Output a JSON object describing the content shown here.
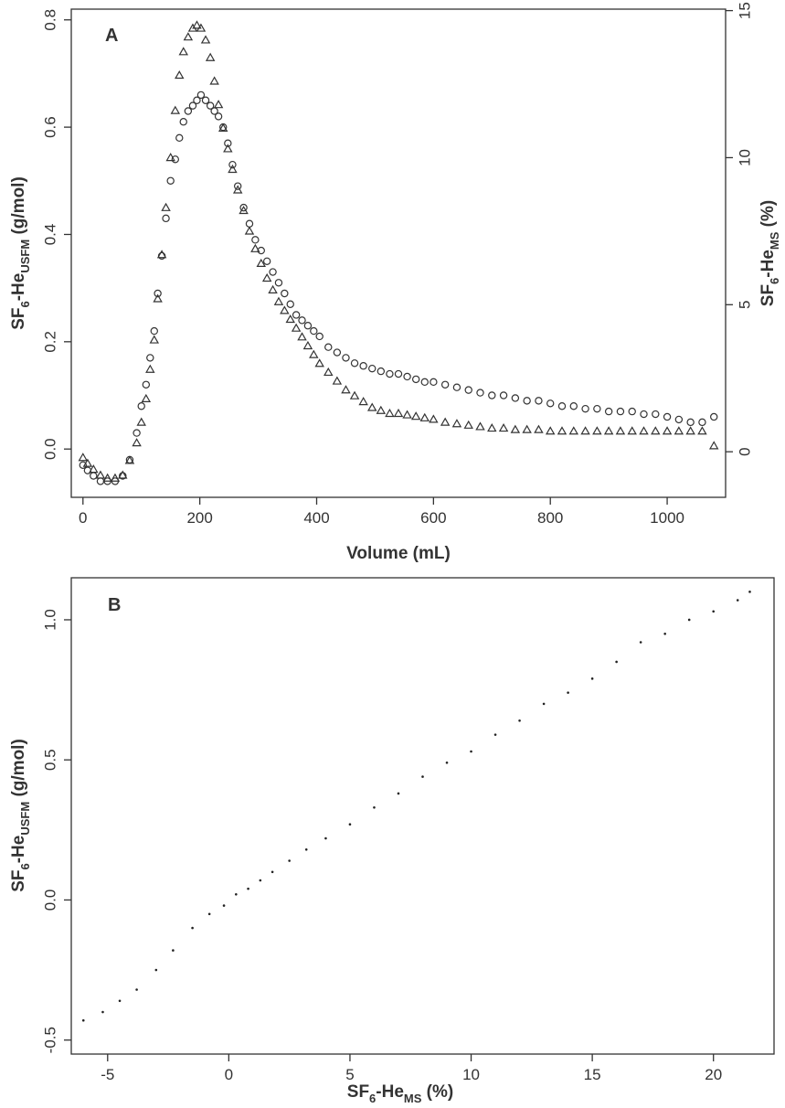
{
  "chart_data": [
    {
      "panel": "A",
      "type": "scatter",
      "xlabel": "Volume (mL)",
      "ylabel": {
        "base": "SF",
        "sub1": "6",
        "mid": "-He",
        "sub2": "USFM",
        "tail": " (g/mol)"
      },
      "ylabel_right": {
        "base": "SF",
        "sub1": "6",
        "mid": "-He",
        "sub2": "MS",
        "tail": " (%)"
      },
      "xlim": [
        -20,
        1100
      ],
      "ylim": [
        -0.09,
        0.82
      ],
      "ylim_right": [
        -1.55,
        15.05
      ],
      "xticks": [
        0,
        200,
        400,
        600,
        800,
        1000
      ],
      "yticks": [
        0.0,
        0.2,
        0.4,
        0.6,
        0.8
      ],
      "yticks_right": [
        0,
        5,
        10,
        15
      ],
      "ytick_labels": [
        "0.0",
        "0.2",
        "0.4",
        "0.6",
        "0.8"
      ],
      "ytick_labels_right": [
        "0",
        "5",
        "10",
        "15"
      ],
      "grid": false,
      "series": [
        {
          "marker": "circle",
          "axis": "left",
          "x": [
            0,
            8,
            18,
            30,
            42,
            55,
            68,
            80,
            92,
            100,
            108,
            115,
            122,
            128,
            135,
            142,
            150,
            158,
            165,
            172,
            180,
            188,
            195,
            202,
            210,
            218,
            225,
            232,
            240,
            248,
            256,
            265,
            275,
            285,
            295,
            305,
            315,
            325,
            335,
            345,
            355,
            365,
            375,
            385,
            395,
            405,
            420,
            435,
            450,
            465,
            480,
            495,
            510,
            525,
            540,
            555,
            570,
            585,
            600,
            620,
            640,
            660,
            680,
            700,
            720,
            740,
            760,
            780,
            800,
            820,
            840,
            860,
            880,
            900,
            920,
            940,
            960,
            980,
            1000,
            1020,
            1040,
            1060,
            1080
          ],
          "y": [
            -0.03,
            -0.04,
            -0.05,
            -0.06,
            -0.06,
            -0.06,
            -0.05,
            -0.02,
            0.03,
            0.08,
            0.12,
            0.17,
            0.22,
            0.29,
            0.36,
            0.43,
            0.5,
            0.54,
            0.58,
            0.61,
            0.63,
            0.64,
            0.65,
            0.66,
            0.65,
            0.64,
            0.63,
            0.62,
            0.6,
            0.57,
            0.53,
            0.49,
            0.45,
            0.42,
            0.39,
            0.37,
            0.35,
            0.33,
            0.31,
            0.29,
            0.27,
            0.25,
            0.24,
            0.23,
            0.22,
            0.21,
            0.19,
            0.18,
            0.17,
            0.16,
            0.155,
            0.15,
            0.145,
            0.14,
            0.14,
            0.135,
            0.13,
            0.125,
            0.125,
            0.12,
            0.115,
            0.11,
            0.105,
            0.1,
            0.1,
            0.095,
            0.09,
            0.09,
            0.085,
            0.08,
            0.08,
            0.075,
            0.075,
            0.07,
            0.07,
            0.07,
            0.065,
            0.065,
            0.06,
            0.055,
            0.05,
            0.05,
            0.06
          ]
        },
        {
          "marker": "triangle",
          "axis": "right",
          "x": [
            0,
            8,
            18,
            30,
            42,
            55,
            68,
            80,
            92,
            100,
            108,
            115,
            122,
            128,
            135,
            142,
            150,
            158,
            165,
            172,
            180,
            188,
            195,
            202,
            210,
            218,
            225,
            232,
            240,
            248,
            256,
            265,
            275,
            285,
            295,
            305,
            315,
            325,
            335,
            345,
            355,
            365,
            375,
            385,
            395,
            405,
            420,
            435,
            450,
            465,
            480,
            495,
            510,
            525,
            540,
            555,
            570,
            585,
            600,
            620,
            640,
            660,
            680,
            700,
            720,
            740,
            760,
            780,
            800,
            820,
            840,
            860,
            880,
            900,
            920,
            940,
            960,
            980,
            1000,
            1020,
            1040,
            1060,
            1080
          ],
          "y": [
            -0.2,
            -0.4,
            -0.6,
            -0.8,
            -0.9,
            -0.9,
            -0.8,
            -0.3,
            0.3,
            1.0,
            1.8,
            2.8,
            3.8,
            5.2,
            6.7,
            8.3,
            10.0,
            11.6,
            12.8,
            13.6,
            14.1,
            14.4,
            14.5,
            14.4,
            14.0,
            13.4,
            12.6,
            11.8,
            11.0,
            10.3,
            9.6,
            8.9,
            8.2,
            7.5,
            6.9,
            6.4,
            5.9,
            5.5,
            5.1,
            4.8,
            4.5,
            4.2,
            3.9,
            3.6,
            3.3,
            3.0,
            2.7,
            2.4,
            2.1,
            1.9,
            1.7,
            1.5,
            1.4,
            1.3,
            1.3,
            1.25,
            1.2,
            1.15,
            1.1,
            1.0,
            0.95,
            0.9,
            0.85,
            0.8,
            0.8,
            0.75,
            0.75,
            0.75,
            0.7,
            0.7,
            0.7,
            0.7,
            0.7,
            0.7,
            0.7,
            0.7,
            0.7,
            0.7,
            0.7,
            0.7,
            0.7,
            0.7,
            0.2
          ]
        }
      ]
    },
    {
      "panel": "B",
      "type": "scatter",
      "xlabel": {
        "base": "SF",
        "sub1": "6",
        "mid": "-He",
        "sub2": "MS",
        "tail": " (%)"
      },
      "ylabel": {
        "base": "SF",
        "sub1": "6",
        "mid": "-He",
        "sub2": "USFM",
        "tail": " (g/mol)"
      },
      "xlim": [
        -6.5,
        22.5
      ],
      "ylim": [
        -0.55,
        1.15
      ],
      "xticks": [
        -5,
        0,
        5,
        10,
        15,
        20
      ],
      "yticks": [
        -0.5,
        0.0,
        0.5,
        1.0
      ],
      "ytick_labels": [
        "-0.5",
        "0.0",
        "0.5",
        "1.0"
      ],
      "grid": false,
      "fit": {
        "slope": 0.0555,
        "intercept": -0.005
      },
      "series": [
        {
          "marker": "dot",
          "x": [
            -6,
            -5.2,
            -4.5,
            -3.8,
            -3.0,
            -2.3,
            -1.5,
            -0.8,
            -0.2,
            0.3,
            0.8,
            1.3,
            1.8,
            2.5,
            3.2,
            4.0,
            5.0,
            6.0,
            7.0,
            8.0,
            9.0,
            10.0,
            11.0,
            12.0,
            13.0,
            14.0,
            15.0,
            16.0,
            17.0,
            18.0,
            19.0,
            20.0,
            21.0,
            21.5
          ],
          "y": [
            -0.43,
            -0.4,
            -0.36,
            -0.32,
            -0.25,
            -0.18,
            -0.1,
            -0.05,
            -0.02,
            0.02,
            0.04,
            0.07,
            0.1,
            0.14,
            0.18,
            0.22,
            0.27,
            0.33,
            0.38,
            0.44,
            0.49,
            0.53,
            0.59,
            0.64,
            0.7,
            0.74,
            0.79,
            0.85,
            0.92,
            0.95,
            1.0,
            1.03,
            1.07,
            1.1
          ]
        }
      ]
    }
  ]
}
